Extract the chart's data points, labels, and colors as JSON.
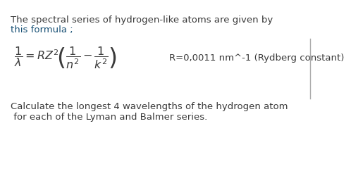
{
  "bg_color": "#ffffff",
  "text_color": "#3a3a3a",
  "blue_color": "#1a5276",
  "line1": "The spectral series of hydrogen-like atoms are given by",
  "line2": "this formula ;",
  "formula": "$\\dfrac{1}{\\lambda} = RZ^{2}\\!\\left(\\dfrac{1}{n^{2}} - \\dfrac{1}{k^{2}}\\right)$",
  "rydberg_text": "R=0,0011 nm^-1 (Rydberg constant)",
  "bottom_line1": "Calculate the longest 4 wavelengths of the hydrogen atom",
  "bottom_line2": " for each of the Lyman and Balmer series.",
  "font_size_text": 9.5,
  "font_size_formula": 11.5,
  "font_size_rydberg": 9.5,
  "border_color": "#aaaaaa"
}
